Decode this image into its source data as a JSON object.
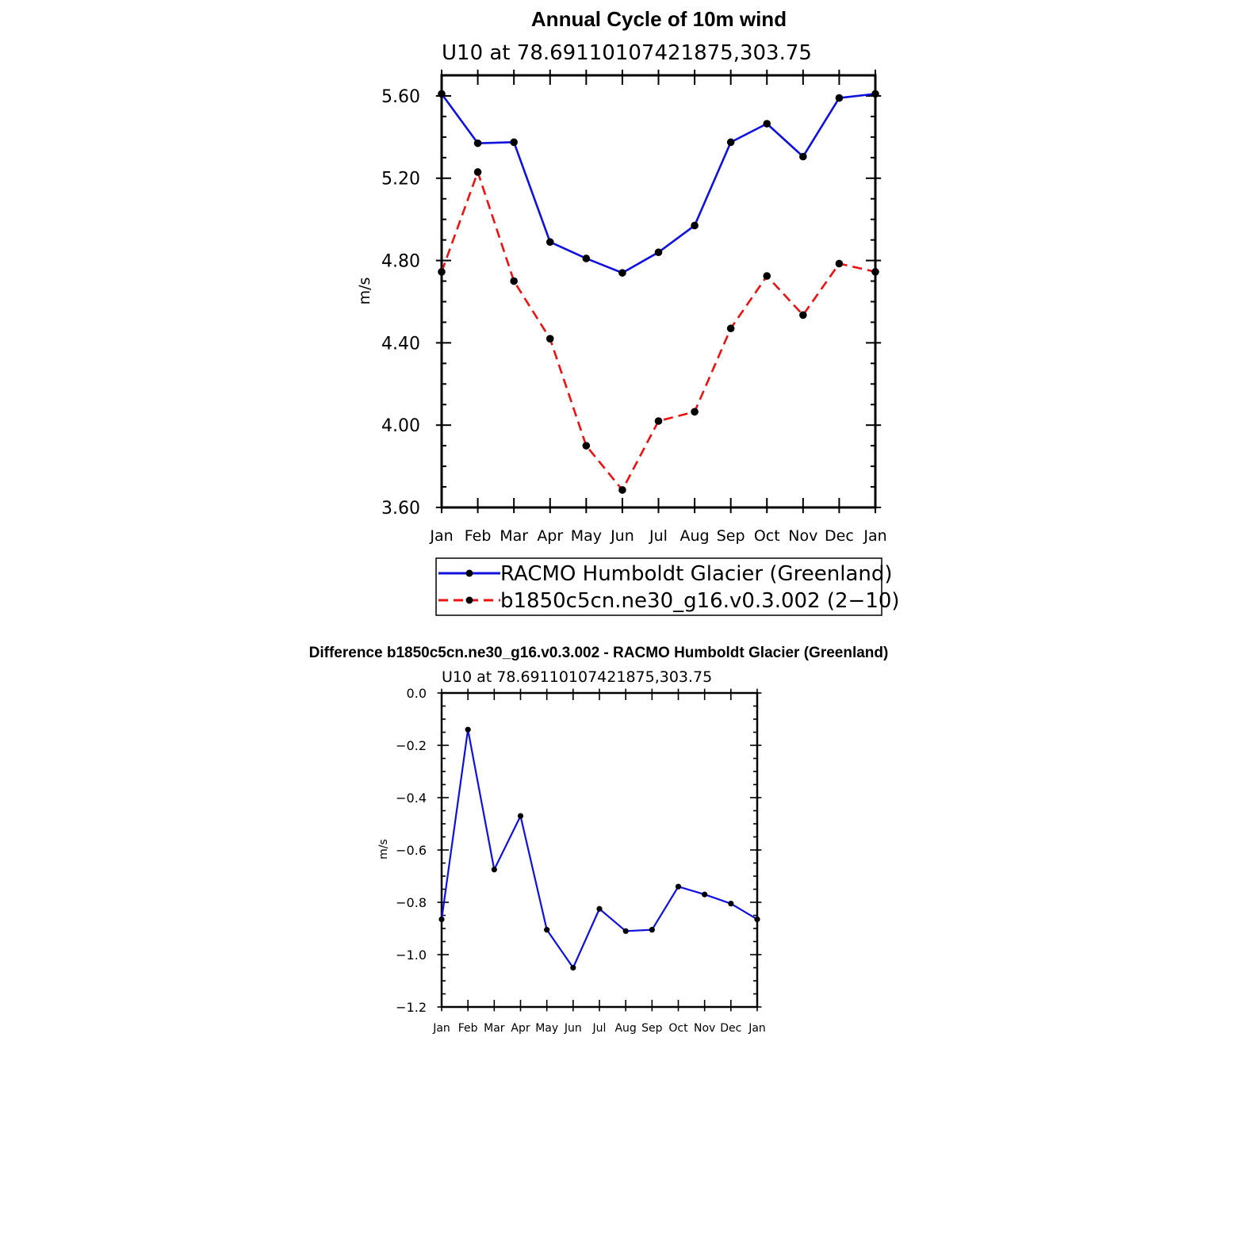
{
  "chart_data": [
    {
      "type": "line",
      "title": "Annual Cycle of 10m wind",
      "subtitle": "U10  at  78.69110107421875,303.75",
      "xlabel": "",
      "ylabel": "m/s",
      "ylim": [
        3.6,
        5.7
      ],
      "yticks": [
        3.6,
        4.0,
        4.4,
        4.8,
        5.2,
        5.6
      ],
      "ytick_labels": [
        "3.60",
        "4.00",
        "4.40",
        "4.80",
        "5.20",
        "5.60"
      ],
      "categories": [
        "Jan",
        "Feb",
        "Mar",
        "Apr",
        "May",
        "Jun",
        "Jul",
        "Aug",
        "Sep",
        "Oct",
        "Nov",
        "Dec",
        "Jan"
      ],
      "series": [
        {
          "name": "RACMO Humboldt Glacier (Greenland)",
          "color": "#1010e0",
          "style": "solid",
          "values": [
            5.61,
            5.37,
            5.375,
            4.89,
            4.81,
            4.74,
            4.84,
            4.97,
            5.375,
            5.465,
            5.305,
            5.59,
            5.61
          ]
        },
        {
          "name": "b1850c5cn.ne30_g16.v0.3.002 (2−10)",
          "color": "#ee1111",
          "style": "dashed",
          "values": [
            4.745,
            5.23,
            4.7,
            4.42,
            3.9,
            3.685,
            4.02,
            4.065,
            4.47,
            4.725,
            4.535,
            4.785,
            4.745
          ]
        }
      ],
      "legend": "below"
    },
    {
      "type": "line",
      "title": "Difference b1850c5cn.ne30_g16.v0.3.002 - RACMO Humboldt Glacier (Greenland)",
      "subtitle": "U10  at  78.69110107421875,303.75",
      "xlabel": "",
      "ylabel": "m/s",
      "ylim": [
        -1.2,
        0.0
      ],
      "yticks": [
        -1.2,
        -1.0,
        -0.8,
        -0.6,
        -0.4,
        -0.2,
        0.0
      ],
      "ytick_labels": [
        "−1.2",
        "−1.0",
        "−0.8",
        "−0.6",
        "−0.4",
        "−0.2",
        "0.0"
      ],
      "categories": [
        "Jan",
        "Feb",
        "Mar",
        "Apr",
        "May",
        "Jun",
        "Jul",
        "Aug",
        "Sep",
        "Oct",
        "Nov",
        "Dec",
        "Jan"
      ],
      "series": [
        {
          "name": "Difference",
          "color": "#1010e0",
          "style": "solid",
          "values": [
            -0.865,
            -0.14,
            -0.675,
            -0.47,
            -0.905,
            -1.05,
            -0.825,
            -0.91,
            -0.905,
            -0.74,
            -0.77,
            -0.805,
            -0.865
          ]
        }
      ]
    }
  ]
}
